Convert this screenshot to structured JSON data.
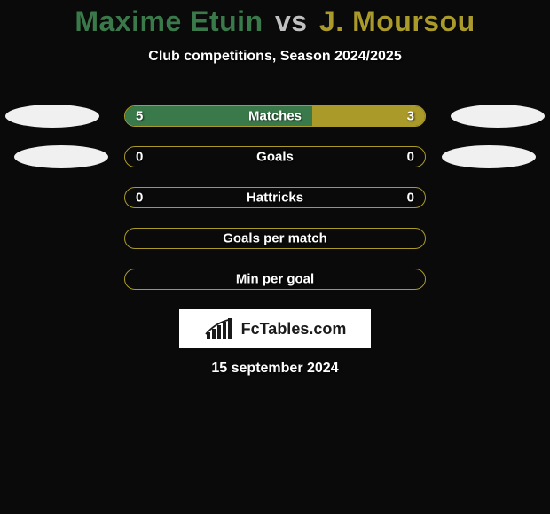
{
  "background_color": "#0a0a0a",
  "title": {
    "player1": "Maxime Etuin",
    "vs": "vs",
    "player2": "J. Moursou",
    "player1_color": "#3a7a4a",
    "vs_color": "#c0c0c0",
    "player2_color": "#aa9a2a"
  },
  "subtitle": {
    "text": "Club competitions, Season 2024/2025",
    "color": "#ffffff"
  },
  "pill_color": "#f0f0f0",
  "bar_track": {
    "border_color": "#aa9a2a",
    "bg_color": "transparent",
    "text_color": "#ffffff"
  },
  "rows": [
    {
      "label": "Matches",
      "left_val": "5",
      "right_val": "3",
      "left_num": 5,
      "right_num": 3,
      "left_pct": 62.5,
      "right_pct": 37.5,
      "left_color": "#3a7a4a",
      "right_color": "#aa9a2a",
      "show_left_pill": true,
      "show_right_pill": true
    },
    {
      "label": "Goals",
      "left_val": "0",
      "right_val": "0",
      "left_num": 0,
      "right_num": 0,
      "left_pct": 0,
      "right_pct": 0,
      "left_color": "#3a7a4a",
      "right_color": "#aa9a2a",
      "show_left_pill": true,
      "show_right_pill": true
    },
    {
      "label": "Hattricks",
      "left_val": "0",
      "right_val": "0",
      "left_num": 0,
      "right_num": 0,
      "left_pct": 0,
      "right_pct": 0,
      "left_color": "#3a7a4a",
      "right_color": "#aa9a2a",
      "show_left_pill": false,
      "show_right_pill": false
    },
    {
      "label": "Goals per match",
      "left_val": "",
      "right_val": "",
      "left_num": 0,
      "right_num": 0,
      "left_pct": 0,
      "right_pct": 0,
      "left_color": "#3a7a4a",
      "right_color": "#aa9a2a",
      "show_left_pill": false,
      "show_right_pill": false
    },
    {
      "label": "Min per goal",
      "left_val": "",
      "right_val": "",
      "left_num": 0,
      "right_num": 0,
      "left_pct": 0,
      "right_pct": 0,
      "left_color": "#3a7a4a",
      "right_color": "#aa9a2a",
      "show_left_pill": false,
      "show_right_pill": false
    }
  ],
  "logo": {
    "bg_color": "#ffffff",
    "text": "FcTables.com",
    "text_color": "#1a1a1a",
    "icon_color": "#1a1a1a"
  },
  "date": {
    "text": "15 september 2024",
    "color": "#ffffff"
  }
}
